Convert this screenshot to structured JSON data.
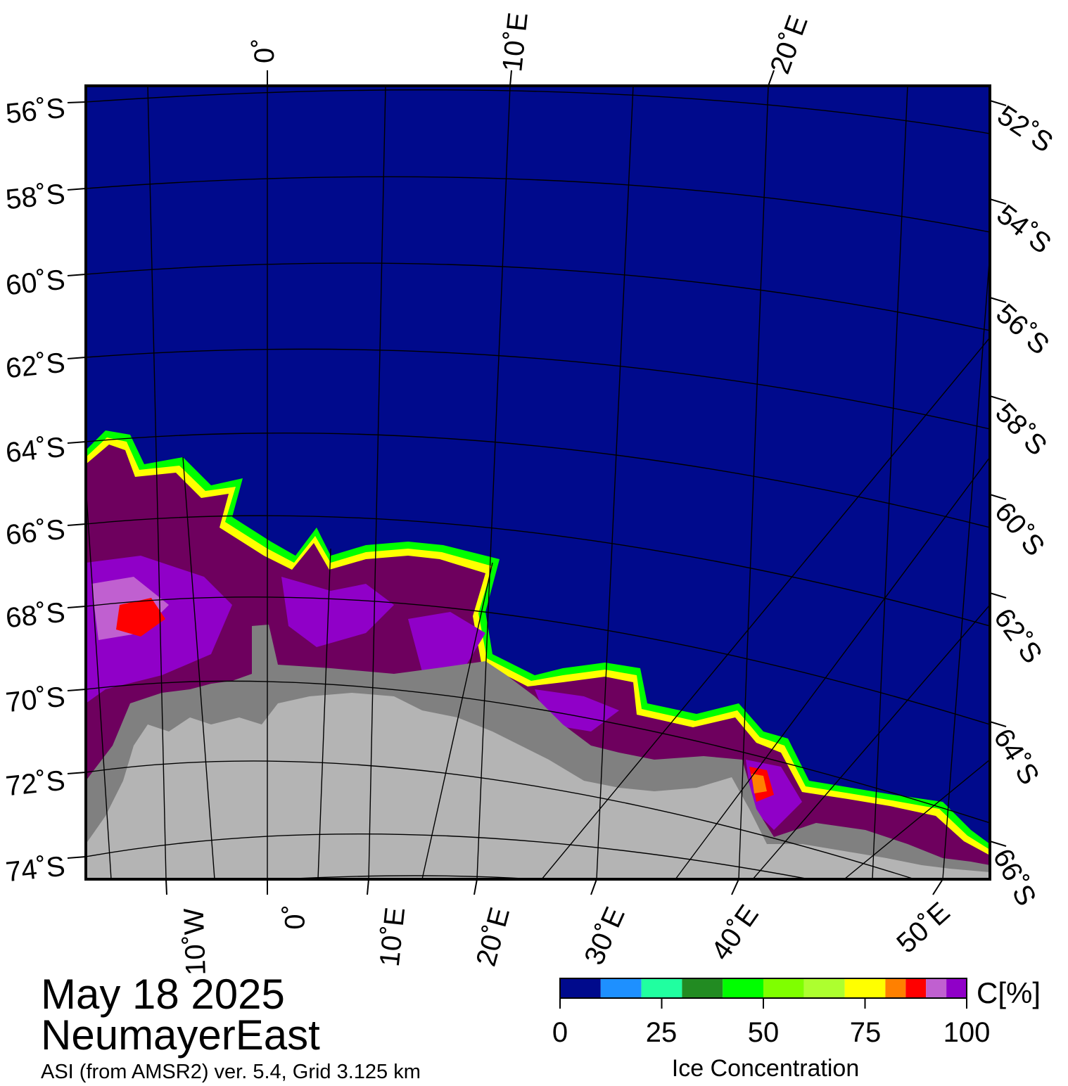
{
  "date": "May 18 2025",
  "region": "NeumayerEast",
  "product": "ASI (from AMSR2) ver. 5.4,  Grid 3.125 km",
  "colorbar": {
    "unit": "C[%]",
    "label": "Ice Concentration",
    "ticks": [
      "0",
      "25",
      "50",
      "75",
      "100"
    ],
    "colors": [
      "#000a8c",
      "#1e90ff",
      "#20ffa0",
      "#228b22",
      "#00ff00",
      "#7fff00",
      "#adff2f",
      "#ffff00",
      "#ff8000",
      "#ff0000",
      "#c060d0",
      "#9000c8"
    ]
  },
  "lat_labels_left": [
    "56˚S",
    "58˚S",
    "60˚S",
    "62˚S",
    "64˚S",
    "66˚S",
    "68˚S",
    "70˚S",
    "72˚S",
    "74˚S"
  ],
  "lat_labels_right": [
    "52˚S",
    "54˚S",
    "56˚S",
    "58˚S",
    "60˚S",
    "62˚S",
    "64˚S",
    "66˚S"
  ],
  "lon_labels_top": [
    "0˚",
    "10˚E",
    "20˚E"
  ],
  "lon_labels_bottom": [
    "10˚W",
    "0˚",
    "10˚E",
    "20˚E",
    "30˚E",
    "40˚E",
    "50˚E"
  ],
  "colors": {
    "ocean": "#000a8c",
    "ice": "#6e005e",
    "ice_shelf": "#808080",
    "land": "#b4b4b4",
    "graticule": "#000000"
  }
}
